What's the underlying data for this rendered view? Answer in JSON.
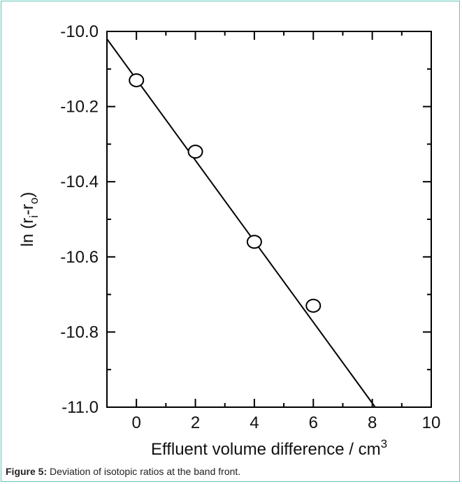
{
  "chart_data": {
    "type": "scatter",
    "x": [
      0,
      2,
      4,
      6
    ],
    "y": [
      -10.13,
      -10.32,
      -10.56,
      -10.73
    ],
    "fit_line": {
      "x": [
        -1,
        8.1
      ],
      "y": [
        -10.02,
        -11.0
      ]
    },
    "xlim": [
      -1,
      10
    ],
    "ylim": [
      -11.0,
      -10.0
    ],
    "xticks": [
      "0",
      "2",
      "4",
      "6",
      "8",
      "10"
    ],
    "yticks": [
      "-10.0",
      "-10.2",
      "-10.4",
      "-10.6",
      "-10.8",
      "-11.0"
    ],
    "xlabel": {
      "text": "Effluent volume difference / cm",
      "sup": "3"
    },
    "ylabel": {
      "pre": "ln (r",
      "sub1": "i",
      "mid": "-r",
      "sub2": "o",
      "post": ")"
    },
    "grid": false,
    "marker": "open-circle",
    "colors": {
      "line": "#000000",
      "marker_fill": "#ffffff",
      "frame": "#5fc3b5"
    }
  },
  "caption": {
    "label": "Figure 5:",
    "text": " Deviation of isotopic ratios at the band front."
  }
}
